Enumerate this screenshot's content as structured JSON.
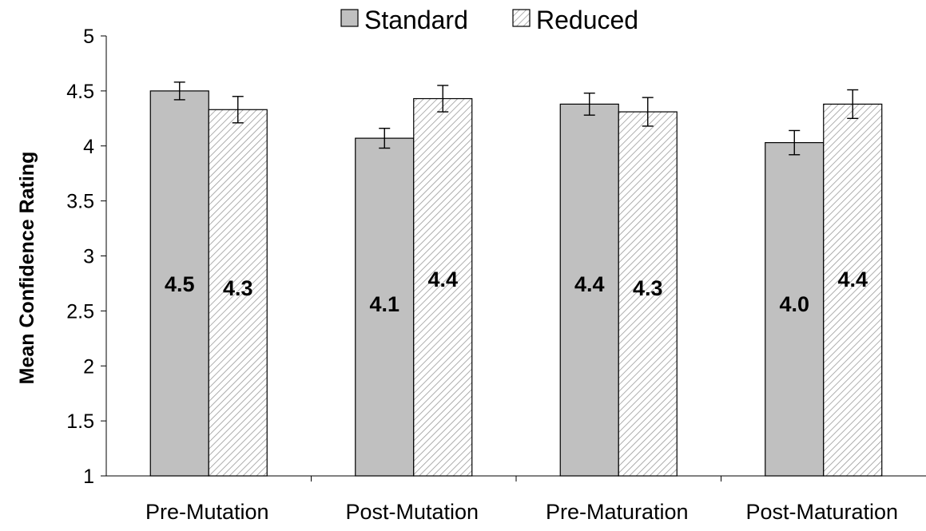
{
  "chart_data": {
    "type": "bar",
    "title": "",
    "xlabel": "",
    "ylabel": "Mean Confidence Rating",
    "ylim": [
      1,
      5
    ],
    "yticks": [
      "1",
      "1.5",
      "2",
      "2.5",
      "3",
      "3.5",
      "4",
      "4.5",
      "5"
    ],
    "grid": false,
    "legend_position": "top",
    "categories": [
      "Pre-Mutation",
      "Post-Mutation",
      "Pre-Maturation",
      "Post-Maturation"
    ],
    "series": [
      {
        "name": "Standard",
        "fill": "#c0c0c0",
        "pattern": "solid",
        "values": [
          4.5,
          4.07,
          4.38,
          4.03
        ],
        "error": [
          0.08,
          0.09,
          0.1,
          0.11
        ],
        "labels": [
          "4.5",
          "4.1",
          "4.4",
          "4.0"
        ]
      },
      {
        "name": "Reduced",
        "fill": "#ffffff",
        "pattern": "diagonal-hatch",
        "values": [
          4.33,
          4.43,
          4.31,
          4.38
        ],
        "error": [
          0.12,
          0.12,
          0.13,
          0.13
        ],
        "labels": [
          "4.3",
          "4.4",
          "4.3",
          "4.4"
        ]
      }
    ]
  }
}
